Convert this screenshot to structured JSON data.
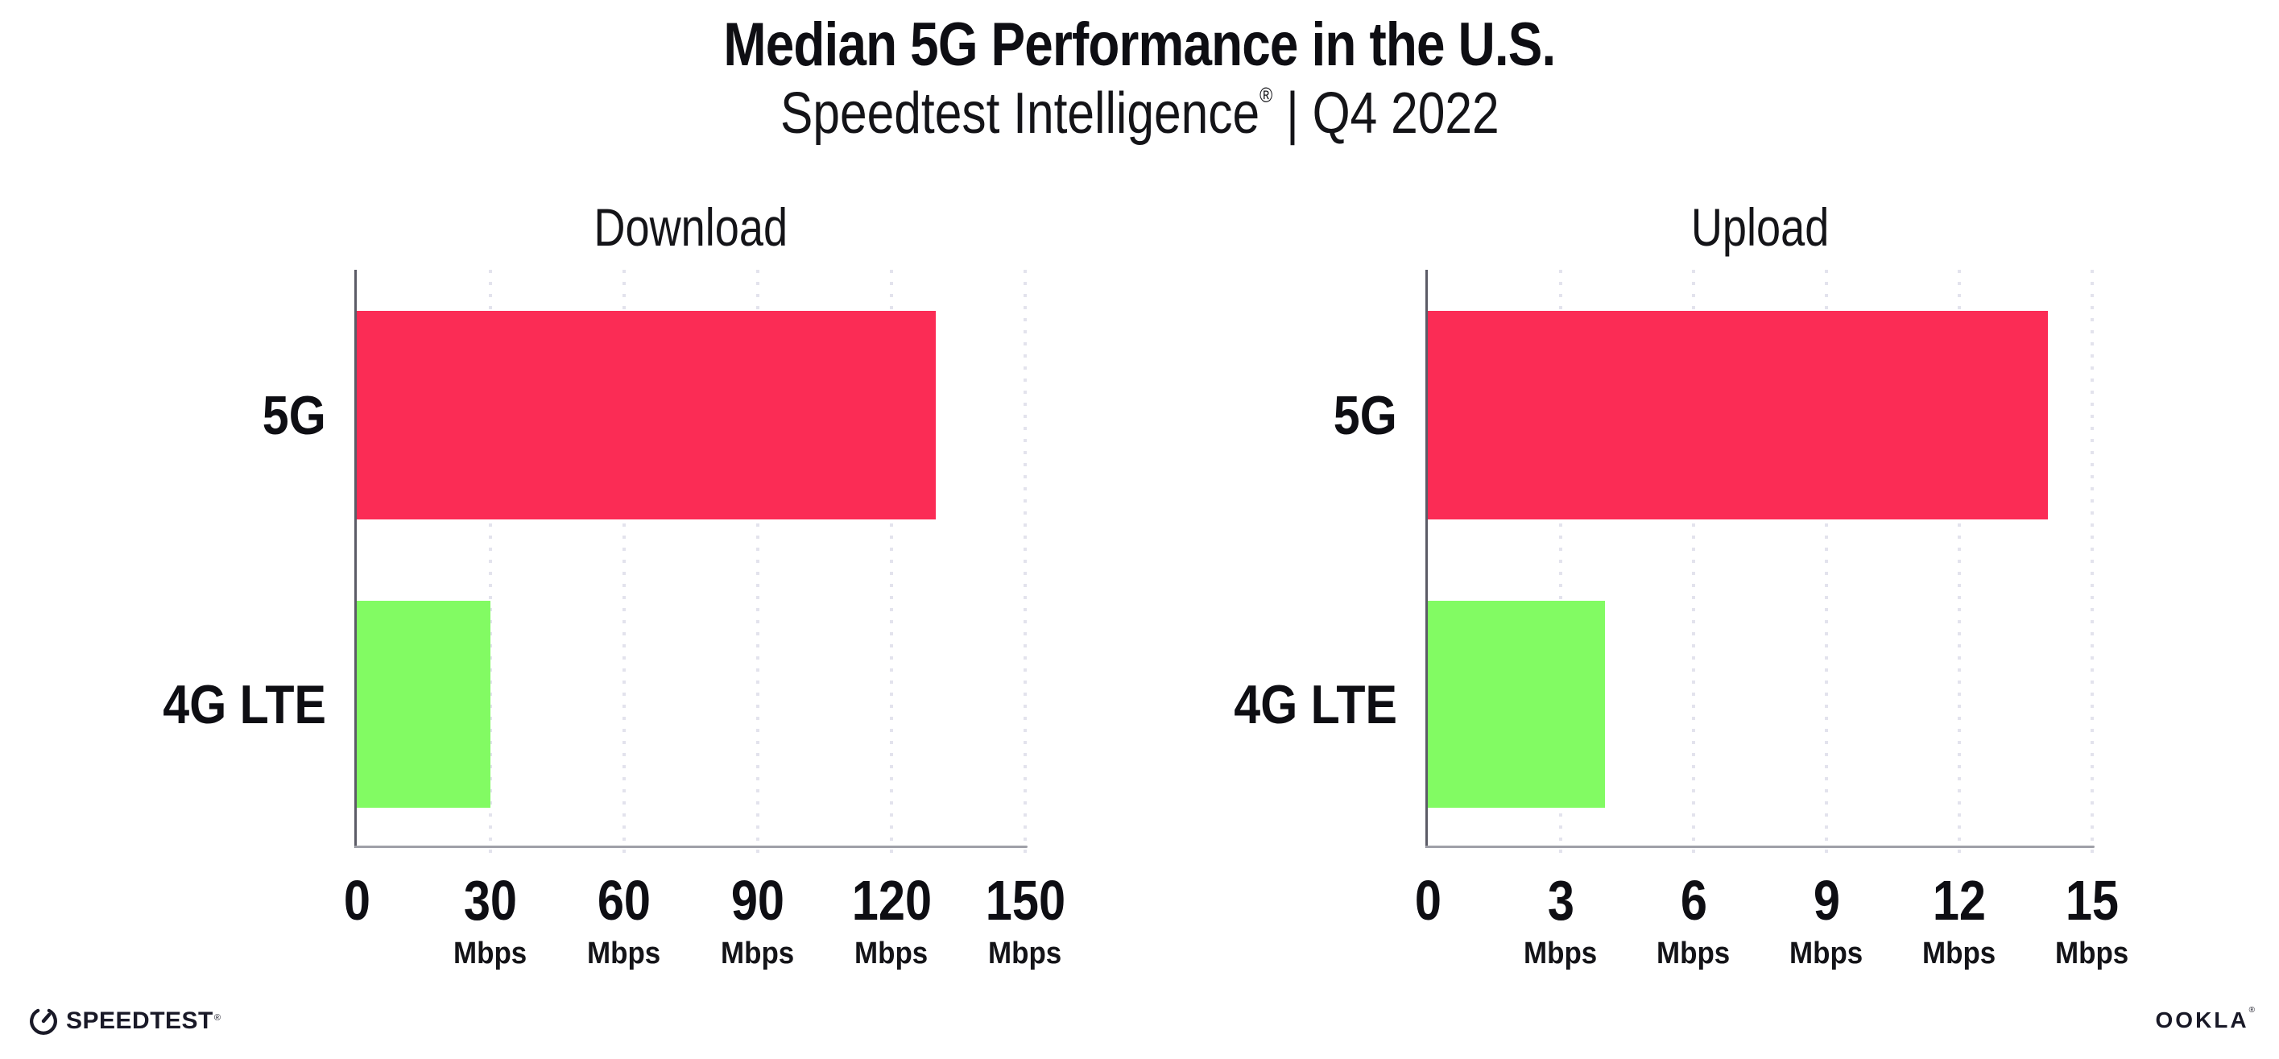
{
  "header": {
    "title": "Median 5G Performance in the U.S.",
    "subtitle_product": "Speedtest Intelligence",
    "subtitle_reg": "®",
    "subtitle_rest": " | Q4 2022"
  },
  "footer": {
    "speedtest_label": "SPEEDTEST",
    "speedtest_reg": "®",
    "ookla_label": "OOKLA",
    "ookla_reg": "®"
  },
  "colors": {
    "bar_5g": "#fb2c55",
    "bar_4g_lte": "#82fb63",
    "gridline": "#e3e3ed",
    "x_axis": "#9fa0a8",
    "y_axis": "#5b5b66",
    "text": "#0e0e13",
    "logo": "#191927",
    "background": "#ffffff"
  },
  "chart_data": [
    {
      "type": "bar",
      "orientation": "horizontal",
      "title": "Download",
      "categories": [
        "5G",
        "4G LTE"
      ],
      "values": [
        130,
        30
      ],
      "unit": "Mbps",
      "xlim": [
        0,
        150
      ],
      "xticks": [
        0,
        30,
        60,
        90,
        120,
        150
      ],
      "tick_unit_label": "Mbps",
      "bar_colors": [
        "#fb2c55",
        "#82fb63"
      ],
      "grid": "vertical-dotted",
      "legend": "none"
    },
    {
      "type": "bar",
      "orientation": "horizontal",
      "title": "Upload",
      "categories": [
        "5G",
        "4G LTE"
      ],
      "values": [
        14,
        4
      ],
      "unit": "Mbps",
      "xlim": [
        0,
        15
      ],
      "xticks": [
        0,
        3,
        6,
        9,
        12,
        15
      ],
      "tick_unit_label": "Mbps",
      "bar_colors": [
        "#fb2c55",
        "#82fb63"
      ],
      "grid": "vertical-dotted",
      "legend": "none"
    }
  ]
}
